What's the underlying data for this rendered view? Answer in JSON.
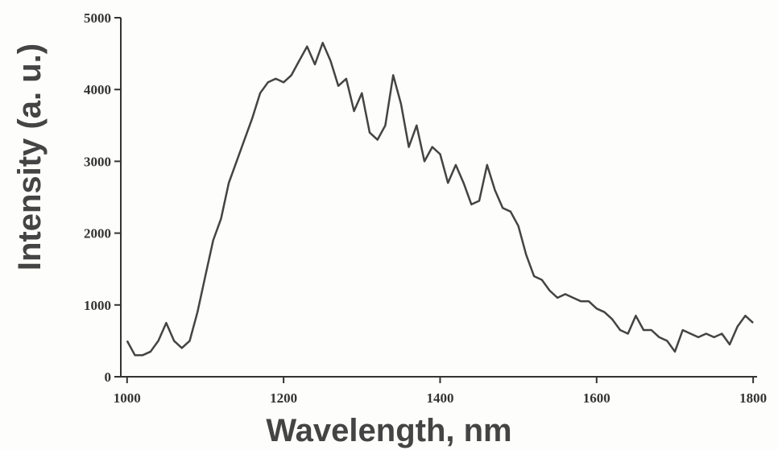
{
  "chart_data": {
    "type": "line",
    "x_label": "Wavelength, nm",
    "y_label": "Intensity (a. u.)",
    "color": "#444444",
    "x": [
      1000,
      1010,
      1020,
      1030,
      1040,
      1050,
      1060,
      1070,
      1080,
      1090,
      1100,
      1110,
      1120,
      1130,
      1140,
      1150,
      1160,
      1170,
      1180,
      1190,
      1200,
      1210,
      1220,
      1230,
      1240,
      1250,
      1260,
      1270,
      1280,
      1290,
      1300,
      1310,
      1320,
      1330,
      1340,
      1350,
      1360,
      1370,
      1380,
      1390,
      1400,
      1410,
      1420,
      1430,
      1440,
      1450,
      1460,
      1470,
      1480,
      1490,
      1500,
      1510,
      1520,
      1530,
      1540,
      1550,
      1560,
      1570,
      1580,
      1590,
      1600,
      1610,
      1620,
      1630,
      1640,
      1650,
      1660,
      1670,
      1680,
      1690,
      1700,
      1710,
      1720,
      1730,
      1740,
      1750,
      1760,
      1770,
      1780,
      1790,
      1800
    ],
    "values": [
      500,
      300,
      300,
      350,
      500,
      750,
      500,
      400,
      500,
      900,
      1400,
      1900,
      2200,
      2700,
      3000,
      3300,
      3600,
      3950,
      4100,
      4150,
      4100,
      4200,
      4400,
      4600,
      4350,
      4650,
      4400,
      4050,
      4150,
      3700,
      3950,
      3400,
      3300,
      3500,
      4200,
      3800,
      3200,
      3500,
      3000,
      3200,
      3100,
      2700,
      2950,
      2700,
      2400,
      2450,
      2950,
      2600,
      2350,
      2300,
      2100,
      1700,
      1400,
      1350,
      1200,
      1100,
      1150,
      1100,
      1050,
      1050,
      950,
      900,
      800,
      650,
      600,
      850,
      650,
      650,
      550,
      500,
      350,
      650,
      600,
      550,
      600,
      550,
      600,
      450,
      700,
      850,
      750
    ],
    "xlim": [
      992,
      1805
    ],
    "xticks": [
      1000,
      1200,
      1400,
      1600,
      1800
    ],
    "ylim": [
      0,
      5000
    ],
    "yticks": [
      0,
      1000,
      2000,
      3000,
      4000,
      5000
    ]
  }
}
